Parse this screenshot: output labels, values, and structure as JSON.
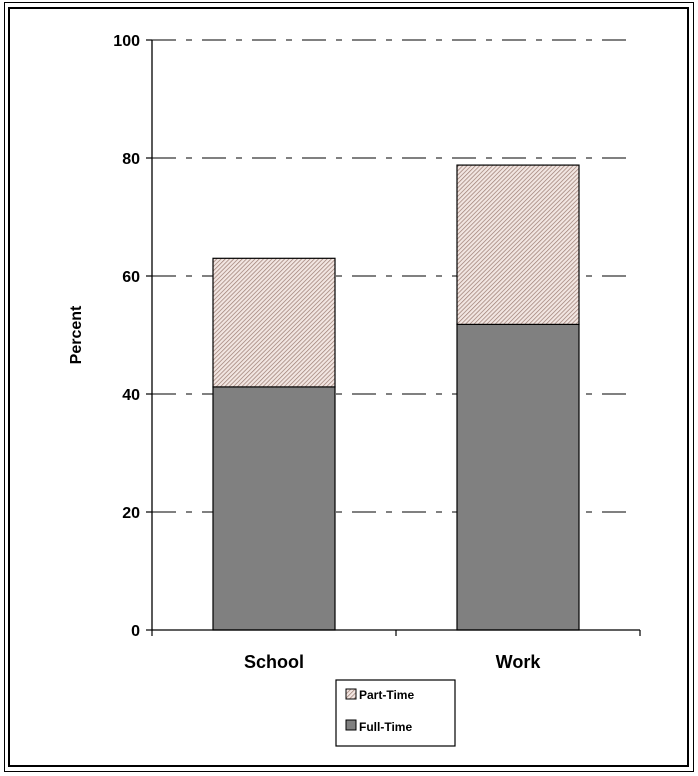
{
  "chart_data": {
    "type": "bar",
    "stacked": true,
    "categories": [
      "School",
      "Work"
    ],
    "series": [
      {
        "name": "Full-Time",
        "values": [
          41.2,
          51.8
        ],
        "color": "#808080",
        "pattern": "solid"
      },
      {
        "name": "Part-Time",
        "values": [
          21.8,
          27.0
        ],
        "color": "#c89a8a",
        "pattern": "diagonal-hatch"
      }
    ],
    "title": "",
    "xlabel": "",
    "ylabel": "Percent",
    "ylim": [
      0,
      100
    ],
    "yticks": [
      0,
      20,
      40,
      60,
      80,
      100
    ],
    "grid": "dash-dot horizontal",
    "legend_position": "bottom-center",
    "legend_order": [
      "Part-Time",
      "Full-Time"
    ]
  }
}
